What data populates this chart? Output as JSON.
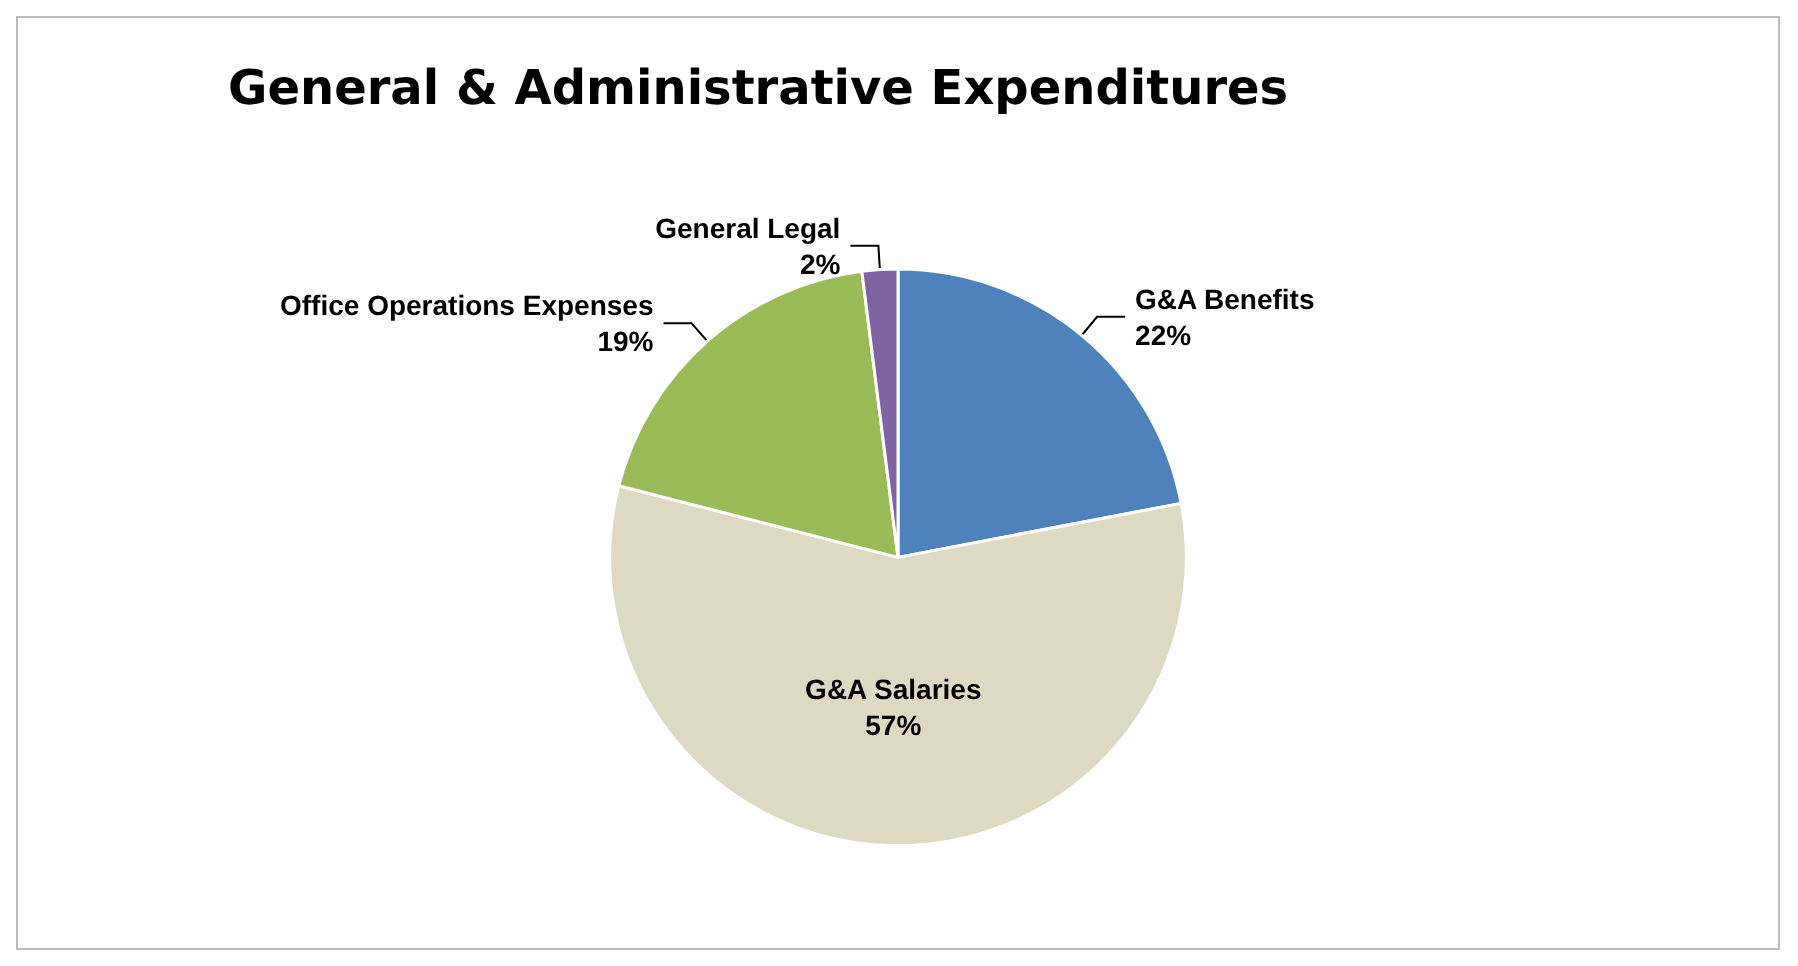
{
  "chart_data": {
    "type": "pie",
    "title": "General & Administrative Expenditures",
    "categories": [
      "G&A Benefits",
      "G&A Salaries",
      "Office Operations Expenses",
      "General Legal"
    ],
    "values": [
      22,
      57,
      19,
      2
    ],
    "value_labels": [
      "22%",
      "57%",
      "19%",
      "2%"
    ],
    "colors": [
      "#4f81bd",
      "#ddd9c3",
      "#9bbb59",
      "#8064a2"
    ],
    "legend": false
  }
}
